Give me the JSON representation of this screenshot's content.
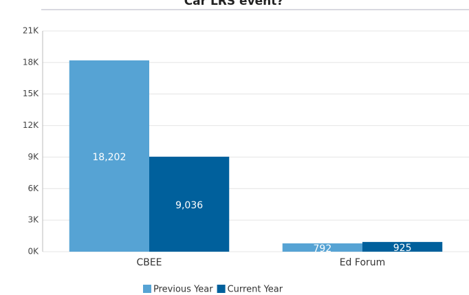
{
  "chart_data": {
    "type": "bar",
    "title": "Car LRS event?",
    "categories": [
      "CBEE",
      "Ed Forum"
    ],
    "series": [
      {
        "name": "Previous Year",
        "color": "#56a3d4",
        "values": [
          18202,
          792
        ],
        "value_labels": [
          "18,202",
          "792"
        ]
      },
      {
        "name": "Current Year",
        "color": "#00609c",
        "values": [
          9036,
          925
        ],
        "value_labels": [
          "9,036",
          "925"
        ]
      }
    ],
    "ylim": [
      0,
      21000
    ],
    "yticks": [
      {
        "value": 0,
        "label": "0K"
      },
      {
        "value": 3000,
        "label": "3K"
      },
      {
        "value": 6000,
        "label": "6K"
      },
      {
        "value": 9000,
        "label": "9K"
      },
      {
        "value": 12000,
        "label": "12K"
      },
      {
        "value": 15000,
        "label": "15K"
      },
      {
        "value": 18000,
        "label": "18K"
      },
      {
        "value": 21000,
        "label": "21K"
      }
    ],
    "grid": true,
    "legend": "bottom"
  }
}
